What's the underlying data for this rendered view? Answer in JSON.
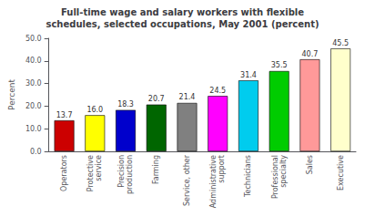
{
  "chart_data": {
    "type": "bar",
    "title": "Full-time wage and salary workers with flexible\nschedules, selected occupations, May 2001 (percent)",
    "categories": [
      "Operators",
      "Protective\nservice",
      "Precision\nproduction",
      "Farming",
      "Service, other",
      "Administrative\nsupport",
      "Technicians",
      "Professional\nspecialty",
      "Sales",
      "Executive"
    ],
    "values": [
      13.7,
      16.0,
      18.3,
      20.7,
      21.4,
      24.5,
      31.4,
      35.5,
      40.7,
      45.5
    ],
    "value_labels": [
      "13.7",
      "16.0",
      "18.3",
      "20.7",
      "21.4",
      "24.5",
      "31.4",
      "35.5",
      "40.7",
      "45.5"
    ],
    "data_labels": true,
    "colors": [
      "#cc0000",
      "#ffff00",
      "#0000cc",
      "#006600",
      "#808080",
      "#ff00ff",
      "#00ccee",
      "#00cc00",
      "#ff9999",
      "#ffffcc"
    ],
    "ylabel": "Percent",
    "ylim": [
      0,
      50
    ],
    "yticks": [
      {
        "value": 0,
        "label": "0.0"
      },
      {
        "value": 10,
        "label": "10.0"
      },
      {
        "value": 20,
        "label": "20.0"
      },
      {
        "value": 30,
        "label": "30.0"
      },
      {
        "value": 40,
        "label": "40.0"
      },
      {
        "value": 50,
        "label": "50.0"
      }
    ],
    "grid": false
  }
}
